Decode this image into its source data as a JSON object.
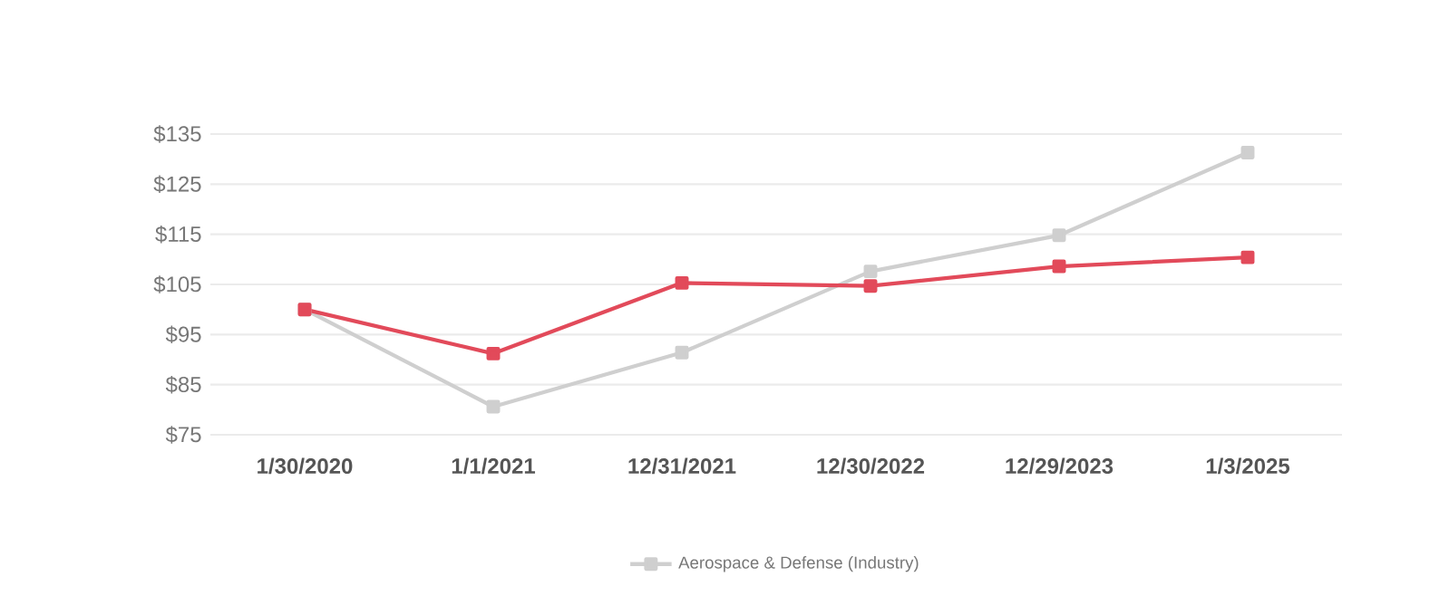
{
  "chart_data": {
    "type": "line",
    "categories": [
      "1/30/2020",
      "1/1/2021",
      "12/31/2021",
      "12/30/2022",
      "12/29/2023",
      "1/3/2025"
    ],
    "series": [
      {
        "color": "#e24a5a",
        "values": [
          100,
          91.2,
          105.3,
          104.7,
          108.6,
          110.4
        ]
      },
      {
        "name": "Aerospace & Defense (Industry)",
        "color": "#cfcfcf",
        "values": [
          100,
          80.6,
          91.4,
          107.6,
          114.8,
          131.3
        ]
      }
    ],
    "ylim": [
      75,
      135
    ],
    "yticks": [
      {
        "value": 75,
        "label": "$75"
      },
      {
        "value": 85,
        "label": "$85"
      },
      {
        "value": 95,
        "label": "$95"
      },
      {
        "value": 105,
        "label": "$105"
      },
      {
        "value": 115,
        "label": "$115"
      },
      {
        "value": 125,
        "label": "$125"
      },
      {
        "value": 135,
        "label": "$135"
      }
    ],
    "grid": "y",
    "legend": "bottom",
    "marker": "square",
    "line_style": "solid"
  }
}
